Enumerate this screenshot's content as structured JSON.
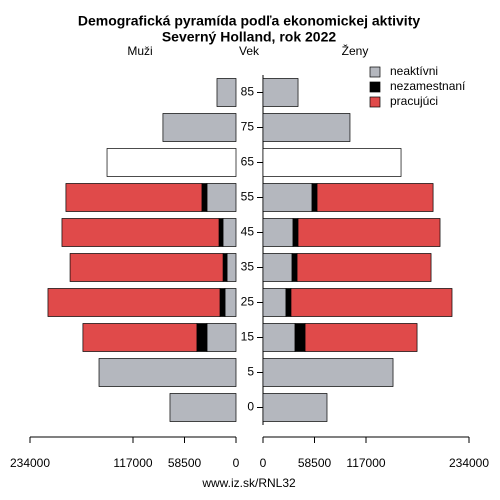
{
  "chart_data": {
    "type": "pyramid",
    "title": "Demografická pyramída podľa ekonomickej aktivity",
    "subtitle": "Severný Holland, rok 2022",
    "left_label": "Muži",
    "center_label": "Vek",
    "right_label": "Ženy",
    "categories": [
      "85",
      "75",
      "65",
      "55",
      "45",
      "35",
      "25",
      "15",
      "5",
      "0"
    ],
    "series": [
      {
        "name": "neaktívni",
        "color": "#b4b7be",
        "point_colors": [
          null,
          null,
          "#ffffff",
          null,
          null,
          null,
          null,
          null,
          null,
          null
        ],
        "men": [
          21600,
          83000,
          146500,
          33000,
          14800,
          10200,
          12500,
          33000,
          155600,
          75000
        ],
        "women": [
          39800,
          98800,
          156800,
          55700,
          34100,
          33000,
          26100,
          36400,
          147700,
          72700
        ]
      },
      {
        "name": "nezamestnaní",
        "color": "#000000",
        "men": [
          0,
          0,
          0,
          5700,
          4500,
          4500,
          5700,
          11400,
          0,
          0
        ],
        "women": [
          0,
          0,
          0,
          5700,
          5700,
          5700,
          5700,
          11400,
          0,
          0
        ]
      },
      {
        "name": "pracujúci",
        "color": "#e04a4a",
        "men": [
          0,
          0,
          0,
          154500,
          178400,
          173800,
          195400,
          129500,
          0,
          0
        ],
        "women": [
          0,
          0,
          0,
          131800,
          161300,
          152200,
          182900,
          127200,
          0,
          0
        ]
      }
    ],
    "xlim": [
      0,
      234000
    ],
    "xticks": [
      0,
      58500,
      117000,
      234000
    ],
    "footer": "www.iz.sk/RNL32"
  }
}
